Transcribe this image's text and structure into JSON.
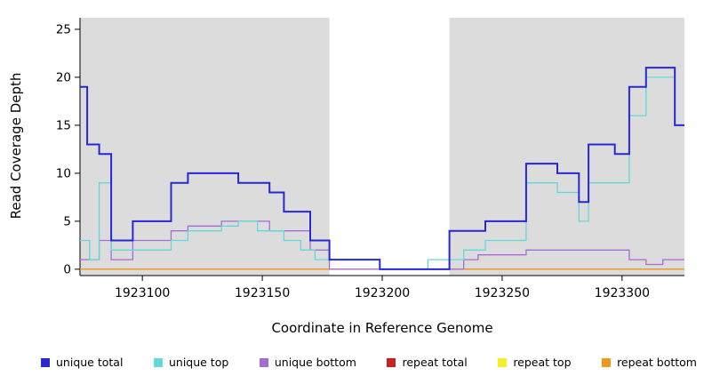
{
  "chart_data": {
    "type": "line",
    "subtype": "step",
    "title": "",
    "xlabel": "Coordinate in Reference Genome",
    "ylabel": "Read Coverage Depth",
    "xlim": [
      1923074,
      1923326
    ],
    "ylim": [
      0,
      25
    ],
    "ylim_draw": [
      -0.66,
      26.2
    ],
    "x_ticks": [
      1923100,
      1923150,
      1923200,
      1923250,
      1923300
    ],
    "y_ticks": [
      0,
      5,
      10,
      15,
      20,
      25
    ],
    "grid": false,
    "legend_position": "bottom",
    "background_color": "#ffffff",
    "shaded_regions": [
      {
        "x0": 1923074,
        "x1": 1923178,
        "color": "#dcdcdc",
        "note": "mapped region"
      },
      {
        "x0": 1923228,
        "x1": 1923326,
        "color": "#dcdcdc",
        "note": "mapped region"
      }
    ],
    "gap_region": {
      "x0": 1923178,
      "x1": 1923228,
      "color": "#ffffff"
    },
    "draw_order": [
      3,
      4,
      5,
      2,
      1,
      0
    ],
    "series": [
      {
        "name": "unique total",
        "color": "#2727d4",
        "width": 2,
        "points": [
          [
            1923074,
            19
          ],
          [
            1923077,
            13
          ],
          [
            1923082,
            12
          ],
          [
            1923087,
            3
          ],
          [
            1923096,
            5
          ],
          [
            1923112,
            9
          ],
          [
            1923119,
            10
          ],
          [
            1923140,
            9
          ],
          [
            1923153,
            8
          ],
          [
            1923159,
            6
          ],
          [
            1923170,
            3
          ],
          [
            1923178,
            1
          ],
          [
            1923199,
            0
          ],
          [
            1923228,
            4
          ],
          [
            1923243,
            5
          ],
          [
            1923260,
            11
          ],
          [
            1923273,
            10
          ],
          [
            1923282,
            7
          ],
          [
            1923286,
            13
          ],
          [
            1923297,
            12
          ],
          [
            1923303,
            19
          ],
          [
            1923310,
            21
          ],
          [
            1923322,
            15
          ],
          [
            1923326,
            15
          ]
        ]
      },
      {
        "name": "unique top",
        "color": "#62d8da",
        "width": 1.3,
        "points": [
          [
            1923074,
            3
          ],
          [
            1923078,
            1
          ],
          [
            1923082,
            9
          ],
          [
            1923087,
            2
          ],
          [
            1923096,
            2
          ],
          [
            1923112,
            3
          ],
          [
            1923119,
            4
          ],
          [
            1923133,
            4.5
          ],
          [
            1923140,
            5
          ],
          [
            1923148,
            4
          ],
          [
            1923159,
            3
          ],
          [
            1923166,
            2
          ],
          [
            1923172,
            1
          ],
          [
            1923178,
            1
          ],
          [
            1923199,
            0
          ],
          [
            1923219,
            1
          ],
          [
            1923234,
            2
          ],
          [
            1923243,
            3
          ],
          [
            1923260,
            9
          ],
          [
            1923273,
            8
          ],
          [
            1923282,
            5
          ],
          [
            1923286,
            9
          ],
          [
            1923297,
            9
          ],
          [
            1923303,
            16
          ],
          [
            1923310,
            20
          ],
          [
            1923322,
            15
          ],
          [
            1923326,
            15
          ]
        ]
      },
      {
        "name": "unique bottom",
        "color": "#a56cd6",
        "width": 1.3,
        "points": [
          [
            1923074,
            1
          ],
          [
            1923082,
            3
          ],
          [
            1923087,
            1
          ],
          [
            1923096,
            3
          ],
          [
            1923112,
            4
          ],
          [
            1923119,
            4.5
          ],
          [
            1923133,
            5
          ],
          [
            1923148,
            5
          ],
          [
            1923153,
            4
          ],
          [
            1923166,
            4
          ],
          [
            1923170,
            2
          ],
          [
            1923178,
            0
          ],
          [
            1923228,
            0
          ],
          [
            1923234,
            1
          ],
          [
            1923240,
            1.5
          ],
          [
            1923260,
            2
          ],
          [
            1923297,
            2
          ],
          [
            1923303,
            1
          ],
          [
            1923310,
            0.5
          ],
          [
            1923317,
            1
          ],
          [
            1923326,
            1
          ]
        ]
      },
      {
        "name": "repeat total",
        "color": "#c82121",
        "width": 1.3,
        "points": [
          [
            1923074,
            0
          ],
          [
            1923326,
            0
          ]
        ]
      },
      {
        "name": "repeat top",
        "color": "#f5ef2a",
        "width": 1.3,
        "points": [
          [
            1923074,
            0
          ],
          [
            1923326,
            0
          ]
        ]
      },
      {
        "name": "repeat bottom",
        "color": "#f0971e",
        "width": 1.3,
        "points": [
          [
            1923074,
            0
          ],
          [
            1923326,
            0
          ]
        ]
      }
    ]
  }
}
